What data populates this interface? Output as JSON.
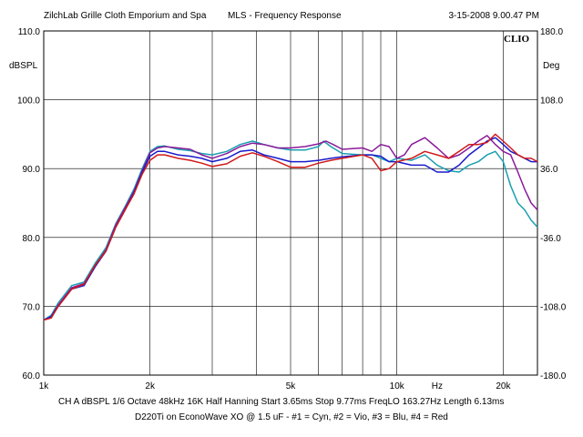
{
  "header": {
    "left": "ZilchLab Grille Cloth Emporium and Spa",
    "center": "MLS - Frequency Response",
    "right": "3-15-2008 9.00.47 PM"
  },
  "logo": "CLIO",
  "footer": {
    "line1": "CH A   dBSPL   1/6 Octave   48kHz   16K   Half Hanning   Start 3.65ms     Stop 9.77ms     FreqLO 163.27Hz   Length 6.13ms",
    "line2": "D220Ti   on EconoWave XO @ 1.5 uF - #1 = Cyn, #2 = Vio, #3 = Blu, #4 = Red"
  },
  "chart_data": {
    "type": "line",
    "title": "MLS - Frequency Response",
    "ylabel": "dBSPL",
    "y2label": "Deg",
    "xlabel": "Hz",
    "x_scale": "log",
    "xlim": [
      1000,
      25000
    ],
    "ylim": [
      60,
      110
    ],
    "y2lim": [
      -180,
      180
    ],
    "grid": true,
    "x_tick_labels": [
      {
        "value": 1000,
        "label": "1k"
      },
      {
        "value": 2000,
        "label": "2k"
      },
      {
        "value": 5000,
        "label": "5k"
      },
      {
        "value": 10000,
        "label": "10k"
      },
      {
        "value": 20000,
        "label": "20k"
      }
    ],
    "x_unit_label": {
      "value": 13000,
      "label": "Hz"
    },
    "y_ticks": [
      {
        "value": 60,
        "label": "60.0"
      },
      {
        "value": 70,
        "label": "70.0"
      },
      {
        "value": 80,
        "label": "80.0"
      },
      {
        "value": 90,
        "label": "90.0"
      },
      {
        "value": 100,
        "label": "100.0"
      },
      {
        "value": 110,
        "label": "110.0"
      }
    ],
    "y2_ticks": [
      {
        "value": -180,
        "label": "-180.0"
      },
      {
        "value": -108,
        "label": "-108.0"
      },
      {
        "value": -36,
        "label": "-36.0"
      },
      {
        "value": 36,
        "label": "36.0"
      },
      {
        "value": 108,
        "label": "108.0"
      },
      {
        "value": 180,
        "label": "180.0"
      }
    ],
    "x_gridlines": [
      1000,
      2000,
      3000,
      4000,
      5000,
      6000,
      7000,
      8000,
      9000,
      10000,
      20000
    ],
    "series": [
      {
        "name": "#1 = Cyn",
        "color": "#1a9fb0",
        "points": [
          [
            1000,
            68
          ],
          [
            1050,
            68.7
          ],
          [
            1100,
            70.5
          ],
          [
            1200,
            73
          ],
          [
            1300,
            73.5
          ],
          [
            1400,
            76.3
          ],
          [
            1500,
            78.5
          ],
          [
            1600,
            82
          ],
          [
            1700,
            84.5
          ],
          [
            1800,
            87
          ],
          [
            1900,
            90
          ],
          [
            2000,
            92.5
          ],
          [
            2100,
            93.2
          ],
          [
            2200,
            93.3
          ],
          [
            2400,
            92.8
          ],
          [
            2600,
            92.6
          ],
          [
            2800,
            92.2
          ],
          [
            3000,
            92
          ],
          [
            3300,
            92.5
          ],
          [
            3600,
            93.5
          ],
          [
            3900,
            94
          ],
          [
            4200,
            93.5
          ],
          [
            4600,
            93
          ],
          [
            5000,
            92.7
          ],
          [
            5500,
            92.7
          ],
          [
            6000,
            93.2
          ],
          [
            6200,
            94
          ],
          [
            6500,
            93.2
          ],
          [
            7000,
            92.2
          ],
          [
            8000,
            92
          ],
          [
            8500,
            92
          ],
          [
            9000,
            91.5
          ],
          [
            9500,
            91
          ],
          [
            10000,
            91.5
          ],
          [
            11000,
            91.2
          ],
          [
            12000,
            92
          ],
          [
            13000,
            90.5
          ],
          [
            14000,
            89.7
          ],
          [
            15000,
            89.5
          ],
          [
            16000,
            90.5
          ],
          [
            17000,
            91
          ],
          [
            18000,
            92
          ],
          [
            19000,
            92.5
          ],
          [
            20000,
            91
          ],
          [
            21000,
            87.5
          ],
          [
            22000,
            85
          ],
          [
            23000,
            84
          ],
          [
            24000,
            82.5
          ],
          [
            25000,
            81.5
          ]
        ]
      },
      {
        "name": "#2 = Vio",
        "color": "#8a1a9a",
        "points": [
          [
            1000,
            68
          ],
          [
            1050,
            68.5
          ],
          [
            1100,
            70.2
          ],
          [
            1200,
            72.7
          ],
          [
            1300,
            73.3
          ],
          [
            1400,
            76
          ],
          [
            1500,
            78.2
          ],
          [
            1600,
            81.8
          ],
          [
            1700,
            84.3
          ],
          [
            1800,
            86.7
          ],
          [
            1900,
            89.7
          ],
          [
            2000,
            92.3
          ],
          [
            2100,
            93
          ],
          [
            2200,
            93.2
          ],
          [
            2400,
            93
          ],
          [
            2600,
            92.8
          ],
          [
            2800,
            92
          ],
          [
            3000,
            91.5
          ],
          [
            3300,
            92.2
          ],
          [
            3600,
            93.2
          ],
          [
            3900,
            93.7
          ],
          [
            4200,
            93.5
          ],
          [
            4600,
            93
          ],
          [
            5000,
            93
          ],
          [
            5500,
            93.2
          ],
          [
            6000,
            93.6
          ],
          [
            6300,
            94
          ],
          [
            6600,
            93.5
          ],
          [
            7000,
            92.8
          ],
          [
            8000,
            93
          ],
          [
            8500,
            92.5
          ],
          [
            9000,
            93.5
          ],
          [
            9500,
            93.2
          ],
          [
            10000,
            91.5
          ],
          [
            10500,
            92
          ],
          [
            11000,
            93.5
          ],
          [
            12000,
            94.5
          ],
          [
            13000,
            93
          ],
          [
            14000,
            91.5
          ],
          [
            15000,
            92
          ],
          [
            16000,
            93
          ],
          [
            17000,
            94
          ],
          [
            18000,
            94.8
          ],
          [
            19000,
            93.5
          ],
          [
            20000,
            92.5
          ],
          [
            21000,
            92
          ],
          [
            22000,
            89.5
          ],
          [
            23000,
            87
          ],
          [
            24000,
            85
          ],
          [
            25000,
            84
          ]
        ]
      },
      {
        "name": "#3 = Blu",
        "color": "#1a1acc",
        "points": [
          [
            1000,
            68
          ],
          [
            1050,
            68.5
          ],
          [
            1100,
            70
          ],
          [
            1200,
            72.5
          ],
          [
            1300,
            73
          ],
          [
            1400,
            75.8
          ],
          [
            1500,
            78
          ],
          [
            1600,
            81.5
          ],
          [
            1700,
            84
          ],
          [
            1800,
            86.5
          ],
          [
            1900,
            89.5
          ],
          [
            2000,
            91.8
          ],
          [
            2100,
            92.5
          ],
          [
            2200,
            92.5
          ],
          [
            2400,
            92
          ],
          [
            2600,
            91.8
          ],
          [
            2800,
            91.5
          ],
          [
            3000,
            91
          ],
          [
            3300,
            91.5
          ],
          [
            3600,
            92.5
          ],
          [
            3900,
            92.7
          ],
          [
            4200,
            92
          ],
          [
            4600,
            91.5
          ],
          [
            5000,
            91
          ],
          [
            5500,
            91
          ],
          [
            6000,
            91.2
          ],
          [
            6500,
            91.5
          ],
          [
            7000,
            91.7
          ],
          [
            8000,
            92
          ],
          [
            8500,
            92
          ],
          [
            9000,
            91.8
          ],
          [
            9500,
            91
          ],
          [
            10000,
            91
          ],
          [
            11000,
            90.5
          ],
          [
            12000,
            90.5
          ],
          [
            13000,
            89.5
          ],
          [
            14000,
            89.5
          ],
          [
            15000,
            90.5
          ],
          [
            16000,
            92
          ],
          [
            17000,
            93
          ],
          [
            18000,
            94
          ],
          [
            19000,
            94.5
          ],
          [
            20000,
            93.5
          ],
          [
            21000,
            92.5
          ],
          [
            22000,
            92
          ],
          [
            23000,
            91.5
          ],
          [
            24000,
            91
          ],
          [
            25000,
            91
          ]
        ]
      },
      {
        "name": "#4 = Red",
        "color": "#d01a1a",
        "points": [
          [
            1000,
            68
          ],
          [
            1050,
            68.3
          ],
          [
            1100,
            70
          ],
          [
            1200,
            72.5
          ],
          [
            1300,
            73.2
          ],
          [
            1400,
            76
          ],
          [
            1500,
            78
          ],
          [
            1600,
            81.5
          ],
          [
            1700,
            84
          ],
          [
            1800,
            86.3
          ],
          [
            1900,
            89.2
          ],
          [
            2000,
            91.2
          ],
          [
            2100,
            92
          ],
          [
            2200,
            92
          ],
          [
            2400,
            91.5
          ],
          [
            2600,
            91.2
          ],
          [
            2800,
            90.8
          ],
          [
            3000,
            90.3
          ],
          [
            3300,
            90.7
          ],
          [
            3600,
            91.8
          ],
          [
            3900,
            92.3
          ],
          [
            4200,
            91.8
          ],
          [
            4600,
            91
          ],
          [
            5000,
            90.2
          ],
          [
            5500,
            90.2
          ],
          [
            6000,
            90.8
          ],
          [
            6500,
            91.2
          ],
          [
            7000,
            91.5
          ],
          [
            8000,
            92
          ],
          [
            8500,
            91.5
          ],
          [
            9000,
            89.7
          ],
          [
            9500,
            90
          ],
          [
            10000,
            91
          ],
          [
            11000,
            91.5
          ],
          [
            12000,
            92.5
          ],
          [
            13000,
            92
          ],
          [
            14000,
            91.5
          ],
          [
            15000,
            92.5
          ],
          [
            16000,
            93.5
          ],
          [
            17000,
            93.5
          ],
          [
            18000,
            93.8
          ],
          [
            19000,
            95
          ],
          [
            20000,
            94
          ],
          [
            21000,
            93
          ],
          [
            22000,
            92
          ],
          [
            23000,
            91.5
          ],
          [
            24000,
            91.5
          ],
          [
            25000,
            91
          ]
        ]
      }
    ]
  }
}
